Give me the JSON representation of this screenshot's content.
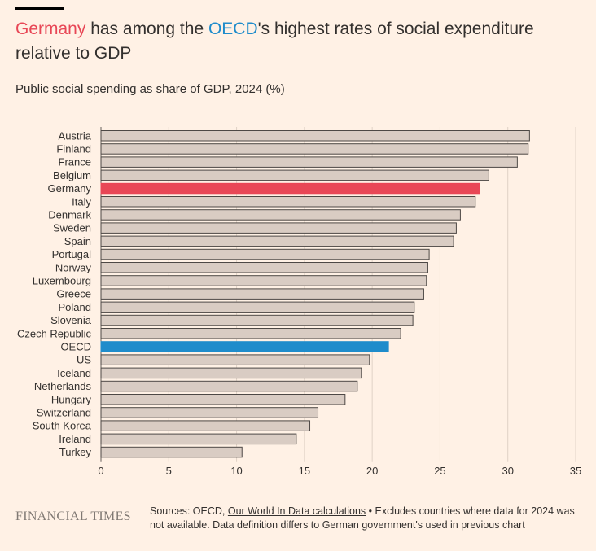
{
  "title": {
    "germany": "Germany",
    "part1": " has among the ",
    "oecd": "OECD",
    "part2": "'s highest rates of social expenditure relative to GDP"
  },
  "subtitle": "Public social spending as share of GDP, 2024 (%)",
  "colors": {
    "background": "#fff1e5",
    "bar_default": "#d9ccc3",
    "bar_outline": "#4d4845",
    "germany": "#e84756",
    "oecd": "#1f8ccb"
  },
  "chart_data": {
    "type": "bar",
    "orientation": "horizontal",
    "categories": [
      "Austria",
      "Finland",
      "France",
      "Belgium",
      "Germany",
      "Italy",
      "Denmark",
      "Sweden",
      "Spain",
      "Portugal",
      "Norway",
      "Luxembourg",
      "Greece",
      "Poland",
      "Slovenia",
      "Czech Republic",
      "OECD",
      "US",
      "Iceland",
      "Netherlands",
      "Hungary",
      "Switzerland",
      "South Korea",
      "Ireland",
      "Turkey"
    ],
    "values": [
      31.6,
      31.5,
      30.7,
      28.6,
      27.9,
      27.6,
      26.5,
      26.2,
      26.0,
      24.2,
      24.1,
      24.0,
      23.8,
      23.1,
      23.0,
      22.1,
      21.2,
      19.8,
      19.2,
      18.9,
      18.0,
      16.0,
      15.4,
      14.4,
      10.4
    ],
    "highlight": {
      "Germany": "#e84756",
      "OECD": "#1f8ccb"
    },
    "xlim": [
      0,
      35
    ],
    "xticks": [
      0,
      5,
      10,
      15,
      20,
      25,
      30,
      35
    ],
    "grid": true
  },
  "footer": {
    "logo": "FINANCIAL TIMES",
    "sources_prefix": "Sources: OECD, ",
    "sources_link": "Our World In Data calculations",
    "sources_suffix": " • Excludes countries where data for 2024 was not available. Data definition differs to German government's used in previous chart"
  }
}
